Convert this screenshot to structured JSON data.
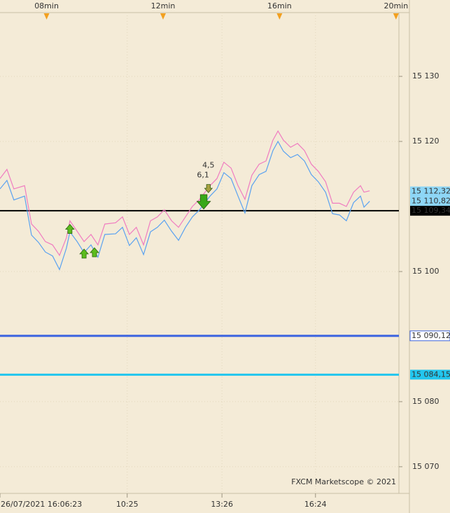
{
  "chart_data": {
    "type": "line",
    "x2ticks": [
      {
        "value": 8,
        "label": "08min"
      },
      {
        "value": 12,
        "label": "12min"
      },
      {
        "value": 16,
        "label": "16min"
      },
      {
        "value": 20,
        "label": "20min"
      }
    ],
    "x2lim": [
      6.4,
      20.1
    ],
    "xlim": [
      6.38,
      19.05
    ],
    "xticks": [
      {
        "value": 6.38,
        "label": "26/07/2021 16:06:23"
      },
      {
        "value": 10.42,
        "label": "10:25"
      },
      {
        "value": 13.43,
        "label": "13:26"
      },
      {
        "value": 16.4,
        "label": "16:24"
      }
    ],
    "ylim": [
      15065.9,
      15139.8
    ],
    "yticks": [
      {
        "value": 15070,
        "label": "15 070"
      },
      {
        "value": 15080,
        "label": "15 080"
      },
      {
        "value": 15100,
        "label": "15 100"
      },
      {
        "value": 15120,
        "label": "15 120"
      },
      {
        "value": 15130,
        "label": "15 130"
      }
    ],
    "grid": true,
    "x": [
      6.38,
      6.6,
      6.82,
      7.16,
      7.38,
      7.6,
      7.82,
      8.05,
      8.27,
      8.49,
      8.6,
      8.83,
      9.05,
      9.27,
      9.49,
      9.71,
      10.05,
      10.27,
      10.49,
      10.71,
      10.94,
      11.16,
      11.38,
      11.6,
      11.83,
      12.05,
      12.27,
      12.49,
      12.72,
      13.05,
      13.27,
      13.49,
      13.72,
      13.94,
      14.16,
      14.38,
      14.61,
      14.83,
      15.05,
      15.21,
      15.38,
      15.61,
      15.83,
      16.05,
      16.27,
      16.49,
      16.72,
      16.94,
      17.16,
      17.38,
      17.61,
      17.83,
      17.94,
      18.12
    ],
    "series": [
      {
        "color": "#f07cc0",
        "values": [
          15114.3,
          15115.7,
          15112.7,
          15113.2,
          15107.3,
          15106.2,
          15104.6,
          15104.1,
          15102.5,
          15105.2,
          15107.8,
          15106.2,
          15104.6,
          15105.7,
          15104.1,
          15107.3,
          15107.5,
          15108.4,
          15105.7,
          15106.8,
          15104.1,
          15107.8,
          15108.4,
          15109.5,
          15107.8,
          15106.8,
          15108.4,
          15110.0,
          15111.1,
          15113.2,
          15114.3,
          15116.8,
          15115.9,
          15113.2,
          15111.1,
          15114.8,
          15116.5,
          15117.0,
          15120.2,
          15121.6,
          15120.2,
          15119.1,
          15119.7,
          15118.6,
          15116.5,
          15115.4,
          15113.8,
          15110.5,
          15110.5,
          15110.0,
          15112.2,
          15113.2,
          15112.2,
          15112.4
        ]
      },
      {
        "color": "#5aa2f0",
        "values": [
          15112.7,
          15114.0,
          15111.0,
          15111.6,
          15105.6,
          15104.5,
          15103.0,
          15102.4,
          15100.3,
          15103.6,
          15106.1,
          15104.6,
          15102.9,
          15104.1,
          15102.2,
          15105.7,
          15105.8,
          15106.8,
          15104.0,
          15105.2,
          15102.6,
          15106.1,
          15106.8,
          15107.9,
          15106.2,
          15104.8,
          15106.8,
          15108.4,
          15109.5,
          15111.6,
          15112.7,
          15115.2,
          15114.3,
          15111.6,
          15109.0,
          15113.2,
          15114.9,
          15115.4,
          15118.6,
          15120.0,
          15118.5,
          15117.5,
          15118.0,
          15117.0,
          15114.9,
          15113.8,
          15112.2,
          15108.9,
          15108.7,
          15107.8,
          15110.6,
          15111.6,
          15109.9,
          15110.8
        ]
      }
    ],
    "hlines": [
      {
        "value": 15109.34,
        "label": "15 109,34",
        "color": "#000000"
      },
      {
        "value": 15090.12,
        "label": "15 090,12",
        "color": "#3a62e0"
      },
      {
        "value": 15084.15,
        "label": "15 084,15",
        "color": "#22c6ee"
      }
    ],
    "price_labels": [
      {
        "value": 15112.32,
        "label": "15 112,32"
      },
      {
        "value": 15110.82,
        "label": "15 110,82"
      }
    ],
    "up_arrows": [
      {
        "x": 8.6,
        "y": 15106.5
      },
      {
        "x": 9.05,
        "y": 15102.7
      },
      {
        "x": 9.38,
        "y": 15102.9
      }
    ],
    "down_arrows": [
      {
        "x": 12.85,
        "y": 15110.8
      },
      {
        "x": 13.0,
        "y": 15112.8
      }
    ],
    "annotations": [
      {
        "text": "4,5",
        "x": 13.0,
        "y": 15116.3
      },
      {
        "text": "6,1",
        "x": 12.83,
        "y": 15114.8
      }
    ],
    "footer": "FXCM Marketscope © 2021"
  }
}
